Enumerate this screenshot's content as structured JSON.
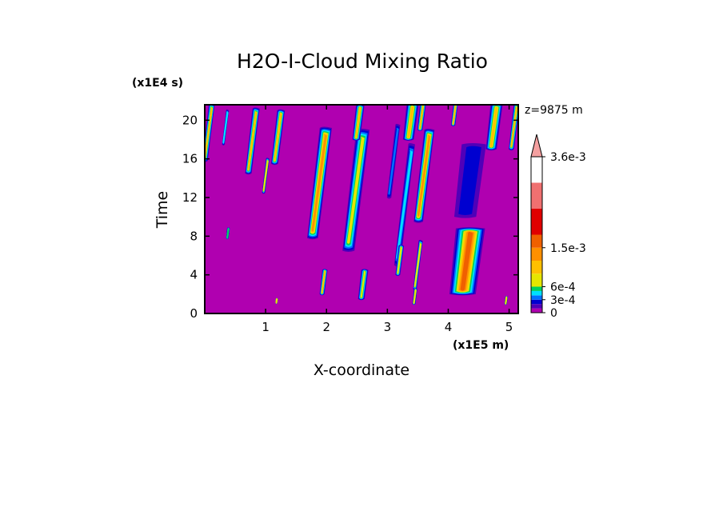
{
  "chart_data": {
    "type": "heatmap",
    "title": "H2O-I-Cloud Mixing Ratio",
    "xlabel": "X-coordinate",
    "ylabel": "Time",
    "x_unit": "(x1E5 m)",
    "y_unit": "(x1E4 s)",
    "level_label": "z=9875 m",
    "xlim": [
      0,
      5.15
    ],
    "ylim": [
      0,
      21.6
    ],
    "xticks": [
      1,
      2,
      3,
      4,
      5
    ],
    "yticks": [
      0,
      4,
      8,
      12,
      16,
      20
    ],
    "colorbar": {
      "tick_labels": [
        "3.6e-3",
        "1.5e-3",
        "6e-4",
        "3e-4",
        "0"
      ],
      "tick_values": [
        0.0036,
        0.0015,
        0.0006,
        0.0003,
        0
      ],
      "levels": [
        0,
        0.0001,
        0.0002,
        0.0003,
        0.0004,
        0.0005,
        0.0006,
        0.0009,
        0.0012,
        0.0015,
        0.0018,
        0.0024,
        0.003,
        0.0036
      ],
      "colors": [
        "#b000b0",
        "#5000b8",
        "#0000d0",
        "#0070ff",
        "#00e0ff",
        "#00d060",
        "#e6e600",
        "#ffc000",
        "#ff9000",
        "#f06000",
        "#e00000",
        "#f07070",
        "#f4a0a0"
      ]
    },
    "features": [
      {
        "x": 0.06,
        "t0": 15.8,
        "t1": 21.6,
        "w": 0.1,
        "v": 0.00095
      },
      {
        "x": 0.34,
        "t0": 17.5,
        "t1": 21.0,
        "w": 0.05,
        "v": 0.00045
      },
      {
        "x": 0.78,
        "t0": 14.5,
        "t1": 21.2,
        "w": 0.12,
        "v": 0.0011
      },
      {
        "x": 1.0,
        "t0": 12.5,
        "t1": 16.0,
        "w": 0.06,
        "v": 0.00085
      },
      {
        "x": 1.2,
        "t0": 15.5,
        "t1": 21.0,
        "w": 0.13,
        "v": 0.001
      },
      {
        "x": 1.88,
        "t0": 7.8,
        "t1": 19.2,
        "w": 0.2,
        "v": 0.0014
      },
      {
        "x": 2.48,
        "t0": 6.5,
        "t1": 19.0,
        "w": 0.22,
        "v": 0.0008
      },
      {
        "x": 2.52,
        "t0": 18.0,
        "t1": 21.5,
        "w": 0.14,
        "v": 0.0011
      },
      {
        "x": 3.1,
        "t0": 12.0,
        "t1": 19.5,
        "w": 0.08,
        "v": 0.00035
      },
      {
        "x": 3.28,
        "t0": 5.0,
        "t1": 17.5,
        "w": 0.11,
        "v": 0.0004
      },
      {
        "x": 3.38,
        "t0": 18.0,
        "t1": 21.6,
        "w": 0.2,
        "v": 0.001
      },
      {
        "x": 3.6,
        "t0": 9.5,
        "t1": 19.0,
        "w": 0.17,
        "v": 0.0012
      },
      {
        "x": 3.56,
        "t0": 19.0,
        "t1": 21.6,
        "w": 0.1,
        "v": 0.0009
      },
      {
        "x": 3.2,
        "t0": 4.0,
        "t1": 7.0,
        "w": 0.09,
        "v": 0.00085
      },
      {
        "x": 3.5,
        "t0": 2.5,
        "t1": 7.5,
        "w": 0.07,
        "v": 0.00085
      },
      {
        "x": 4.35,
        "t0": 10.0,
        "t1": 17.5,
        "w": 0.4,
        "v": 0.0002
      },
      {
        "x": 4.3,
        "t0": 2.0,
        "t1": 8.8,
        "w": 0.48,
        "v": 0.0015
      },
      {
        "x": 4.1,
        "t0": 19.5,
        "t1": 21.6,
        "w": 0.08,
        "v": 0.0009
      },
      {
        "x": 4.75,
        "t0": 17.0,
        "t1": 21.6,
        "w": 0.2,
        "v": 0.0011
      },
      {
        "x": 5.08,
        "t0": 17.0,
        "t1": 21.6,
        "w": 0.1,
        "v": 0.001
      },
      {
        "x": 1.95,
        "t0": 2.0,
        "t1": 4.5,
        "w": 0.09,
        "v": 0.0009
      },
      {
        "x": 2.6,
        "t0": 1.5,
        "t1": 4.5,
        "w": 0.12,
        "v": 0.0008
      },
      {
        "x": 3.45,
        "t0": 1.0,
        "t1": 2.5,
        "w": 0.06,
        "v": 0.0006
      },
      {
        "x": 0.38,
        "t0": 7.8,
        "t1": 8.8,
        "w": 0.05,
        "v": 0.0005
      },
      {
        "x": 1.18,
        "t0": 1.1,
        "t1": 1.5,
        "w": 0.03,
        "v": 0.0006
      },
      {
        "x": 4.95,
        "t0": 1.0,
        "t1": 1.7,
        "w": 0.05,
        "v": 0.0006
      }
    ]
  }
}
